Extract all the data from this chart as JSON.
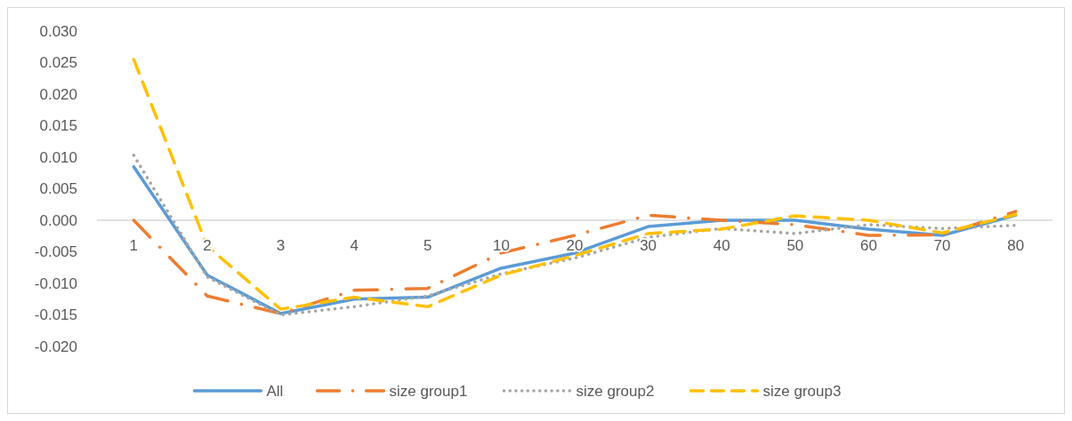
{
  "chart_data": {
    "type": "line",
    "categories": [
      "1",
      "2",
      "3",
      "4",
      "5",
      "10",
      "20",
      "30",
      "40",
      "50",
      "60",
      "70",
      "80"
    ],
    "ylim": [
      -0.02,
      0.03
    ],
    "yticks": [
      {
        "value": -0.02,
        "label": "-0.020"
      },
      {
        "value": -0.015,
        "label": "-0.015"
      },
      {
        "value": -0.01,
        "label": "-0.010"
      },
      {
        "value": -0.005,
        "label": "-0.005"
      },
      {
        "value": 0,
        "label": "0.000"
      },
      {
        "value": 0.005,
        "label": "0.005"
      },
      {
        "value": 0.01,
        "label": "0.010"
      },
      {
        "value": 0.015,
        "label": "0.015"
      },
      {
        "value": 0.02,
        "label": "0.020"
      },
      {
        "value": 0.025,
        "label": "0.025"
      },
      {
        "value": 0.03,
        "label": "0.030"
      }
    ],
    "grid": false,
    "legend": "bottom",
    "marker": "none",
    "series": [
      {
        "name": "All",
        "color": "#5b9bd5",
        "line_style": "solid",
        "values": [
          0.0085,
          -0.0087,
          -0.0148,
          -0.0125,
          -0.0122,
          -0.0076,
          -0.0052,
          -0.001,
          0.0,
          0.0,
          -0.0014,
          -0.0024,
          0.0008
        ]
      },
      {
        "name": "size group1",
        "color": "#ed7d31",
        "line_style": "dashdot",
        "values": [
          0.0,
          -0.012,
          -0.0148,
          -0.0111,
          -0.0108,
          -0.0052,
          -0.0024,
          0.0008,
          0.0,
          -0.0007,
          -0.0024,
          -0.0023,
          0.0014
        ]
      },
      {
        "name": "size group2",
        "color": "#a5a5a5",
        "line_style": "dotted",
        "values": [
          0.0103,
          -0.009,
          -0.015,
          -0.0137,
          -0.012,
          -0.0085,
          -0.006,
          -0.0027,
          -0.0013,
          -0.0021,
          -0.0007,
          -0.0013,
          -0.0008
        ]
      },
      {
        "name": "size group3",
        "color": "#ffc000",
        "line_style": "dashed",
        "values": [
          0.0255,
          -0.0041,
          -0.0141,
          -0.0122,
          -0.0137,
          -0.0087,
          -0.0056,
          -0.0021,
          -0.0014,
          0.0007,
          0.0,
          -0.002,
          0.0009
        ]
      }
    ]
  }
}
